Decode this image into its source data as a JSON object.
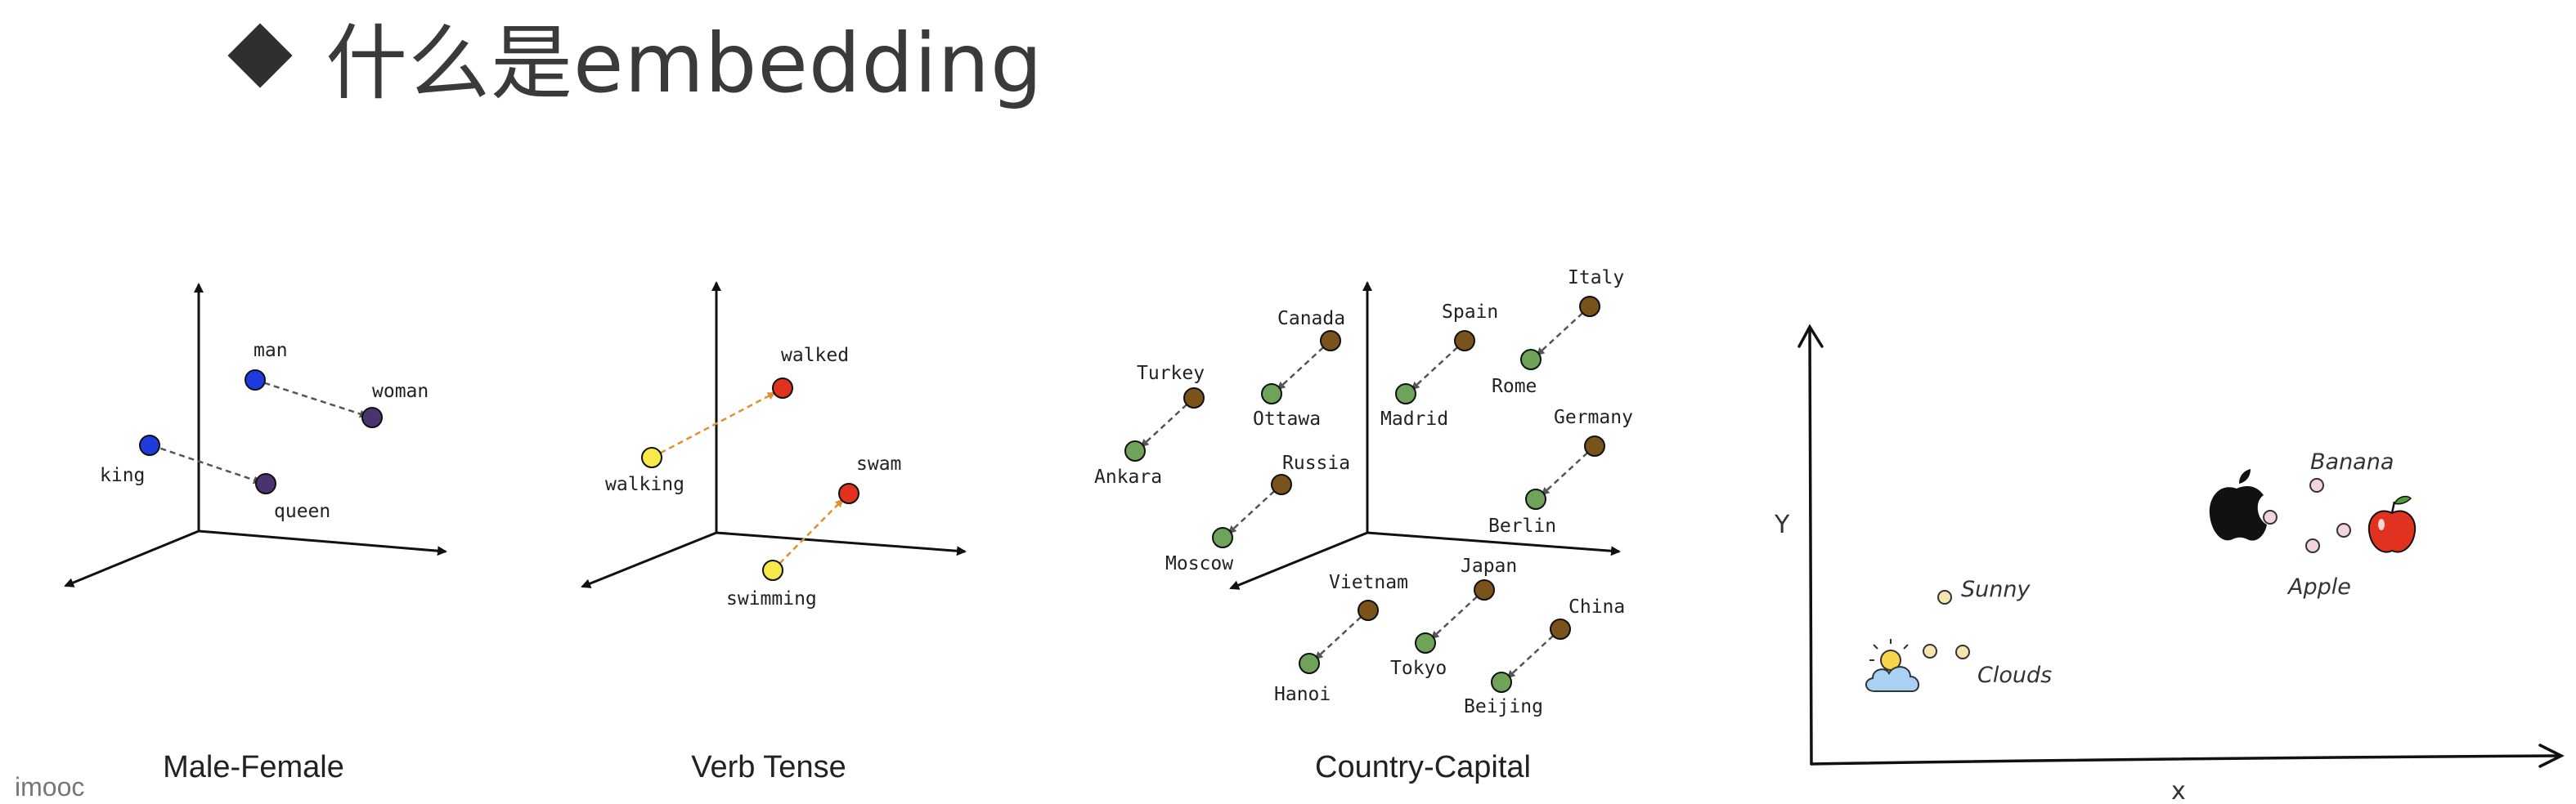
{
  "title": "什么是embedding",
  "watermark": "imooc",
  "panels": [
    {
      "caption": "Male-Female",
      "labels": {
        "man": "man",
        "woman": "woman",
        "king": "king",
        "queen": "queen"
      }
    },
    {
      "caption": "Verb Tense",
      "labels": {
        "walked": "walked",
        "walking": "walking",
        "swam": "swam",
        "swimming": "swimming"
      }
    },
    {
      "caption": "Country-Capital",
      "labels": {
        "canada": "Canada",
        "ottawa": "Ottawa",
        "spain": "Spain",
        "madrid": "Madrid",
        "italy": "Italy",
        "rome": "Rome",
        "turkey": "Turkey",
        "ankara": "Ankara",
        "russia": "Russia",
        "moscow": "Moscow",
        "germany": "Germany",
        "berlin": "Berlin",
        "vietnam": "Vietnam",
        "hanoi": "Hanoi",
        "japan": "Japan",
        "tokyo": "Tokyo",
        "china": "China",
        "beijing": "Beijing"
      }
    },
    {
      "axis_x": "x",
      "axis_y": "Y",
      "labels": {
        "banana": "Banana",
        "apple": "Apple",
        "sunny": "Sunny",
        "clouds": "Clouds"
      }
    }
  ],
  "colors": {
    "blue": "#1f3be0",
    "purple": "#4a3470",
    "yellow": "#f6e94a",
    "red": "#e0321f",
    "brown": "#7a521c",
    "green": "#6fa35a"
  }
}
